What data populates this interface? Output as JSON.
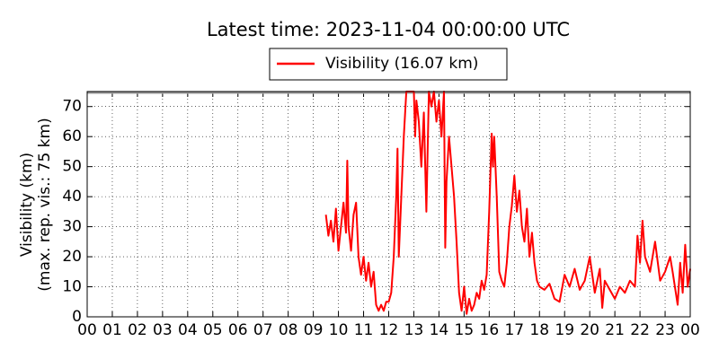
{
  "chart_data": {
    "type": "line",
    "title": "Latest time: 2023-11-04 00:00:00 UTC",
    "y_label": [
      "Visibility (km)",
      "(max. rep. vis.: 75 km)"
    ],
    "grid": true,
    "xlim": [
      0,
      24
    ],
    "ylim": [
      0,
      75
    ],
    "yticks": [
      0,
      10,
      20,
      30,
      40,
      50,
      60,
      70
    ],
    "xticks": [
      {
        "value": 0,
        "label": "00"
      },
      {
        "value": 1,
        "label": "01"
      },
      {
        "value": 2,
        "label": "02"
      },
      {
        "value": 3,
        "label": "03"
      },
      {
        "value": 4,
        "label": "04"
      },
      {
        "value": 5,
        "label": "05"
      },
      {
        "value": 6,
        "label": "06"
      },
      {
        "value": 7,
        "label": "07"
      },
      {
        "value": 8,
        "label": "08"
      },
      {
        "value": 9,
        "label": "09"
      },
      {
        "value": 10,
        "label": "10"
      },
      {
        "value": 11,
        "label": "11"
      },
      {
        "value": 12,
        "label": "12"
      },
      {
        "value": 13,
        "label": "13"
      },
      {
        "value": 14,
        "label": "14"
      },
      {
        "value": 15,
        "label": "15"
      },
      {
        "value": 16,
        "label": "16"
      },
      {
        "value": 17,
        "label": "17"
      },
      {
        "value": 18,
        "label": "18"
      },
      {
        "value": 19,
        "label": "19"
      },
      {
        "value": 20,
        "label": "20"
      },
      {
        "value": 21,
        "label": "21"
      },
      {
        "value": 22,
        "label": "22"
      },
      {
        "value": 23,
        "label": "23"
      },
      {
        "value": 24,
        "label": "00"
      }
    ],
    "x": [
      9.5,
      9.6,
      9.7,
      9.8,
      9.9,
      10.0,
      10.1,
      10.2,
      10.3,
      10.35,
      10.4,
      10.5,
      10.6,
      10.7,
      10.8,
      10.9,
      11.0,
      11.1,
      11.2,
      11.3,
      11.4,
      11.5,
      11.6,
      11.7,
      11.8,
      11.9,
      12.0,
      12.1,
      12.2,
      12.3,
      12.35,
      12.4,
      12.5,
      12.6,
      12.7,
      12.8,
      12.9,
      13.0,
      13.05,
      13.1,
      13.2,
      13.3,
      13.4,
      13.5,
      13.6,
      13.7,
      13.8,
      13.9,
      14.0,
      14.1,
      14.2,
      14.25,
      14.3,
      14.4,
      14.5,
      14.6,
      14.7,
      14.8,
      14.9,
      15.0,
      15.1,
      15.2,
      15.3,
      15.4,
      15.5,
      15.6,
      15.7,
      15.8,
      15.9,
      16.0,
      16.1,
      16.15,
      16.2,
      16.3,
      16.4,
      16.5,
      16.6,
      16.7,
      16.8,
      16.9,
      17.0,
      17.1,
      17.2,
      17.3,
      17.4,
      17.5,
      17.6,
      17.7,
      17.8,
      17.9,
      18.0,
      18.2,
      18.4,
      18.6,
      18.8,
      19.0,
      19.2,
      19.4,
      19.6,
      19.8,
      20.0,
      20.2,
      20.4,
      20.5,
      20.6,
      20.8,
      21.0,
      21.2,
      21.4,
      21.6,
      21.8,
      21.9,
      22.0,
      22.1,
      22.2,
      22.4,
      22.6,
      22.8,
      23.0,
      23.2,
      23.3,
      23.5,
      23.6,
      23.7,
      23.8,
      23.9,
      24.0
    ],
    "series": [
      {
        "name": "Visibility (16.07 km)",
        "color": "#ff0000",
        "values": [
          34,
          27,
          32,
          25,
          36,
          22,
          30,
          38,
          28,
          52,
          30,
          22,
          34,
          38,
          20,
          14,
          20,
          12,
          18,
          10,
          15,
          4,
          2,
          4,
          2,
          5,
          5,
          8,
          20,
          40,
          56,
          20,
          40,
          60,
          75,
          75,
          75,
          75,
          60,
          72,
          65,
          50,
          68,
          35,
          75,
          70,
          75,
          65,
          72,
          60,
          75,
          23,
          45,
          60,
          50,
          40,
          25,
          8,
          2,
          10,
          1,
          6,
          2,
          4,
          8,
          6,
          12,
          9,
          14,
          35,
          61,
          50,
          60,
          40,
          15,
          12,
          10,
          18,
          30,
          37,
          47,
          35,
          42,
          30,
          25,
          36,
          20,
          28,
          18,
          12,
          10,
          9,
          11,
          6,
          5,
          14,
          10,
          16,
          9,
          12,
          20,
          8,
          16,
          3,
          12,
          9,
          6,
          10,
          8,
          12,
          10,
          27,
          18,
          32,
          20,
          15,
          25,
          12,
          15,
          20,
          15,
          4,
          18,
          8,
          24,
          10,
          16
        ]
      }
    ]
  }
}
